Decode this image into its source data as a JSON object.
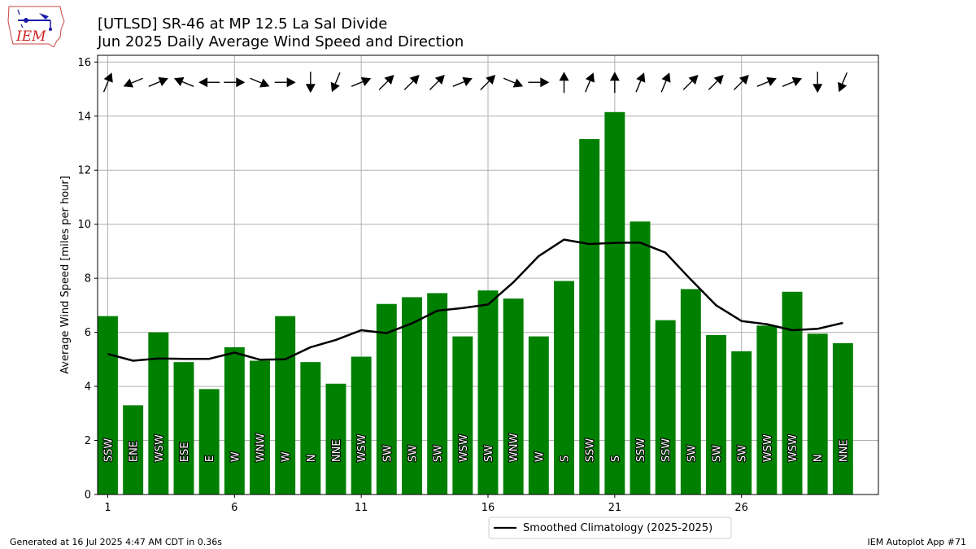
{
  "title_line1": "[UTLSD] SR-46 at MP 12.5 La Sal Divide",
  "title_line2": "Jun 2025 Daily Average Wind Speed and Direction",
  "logo_text": "IEM",
  "footer_left": "Generated at 16 Jul 2025 4:47 AM CDT in 0.36s",
  "footer_right": "IEM Autoplot App #71",
  "colors": {
    "bar": "#008000",
    "line": "#000000",
    "grid": "#b0b0b0",
    "logo_text": "#cc2222",
    "logo_icon": "#1a1aa8"
  },
  "chart_data": {
    "type": "bar",
    "ylabel": "Average Wind Speed [miles per hour]",
    "xlabel": "",
    "ylim": [
      0,
      16.25
    ],
    "xlim": [
      0.6,
      31.4
    ],
    "yticks": [
      0,
      2,
      4,
      6,
      8,
      10,
      12,
      14,
      16
    ],
    "xticks": [
      1,
      6,
      11,
      16,
      21,
      26
    ],
    "grid": true,
    "legend_placement": "bottom-center (below plot)",
    "days": [
      1,
      2,
      3,
      4,
      5,
      6,
      7,
      8,
      9,
      10,
      11,
      12,
      13,
      14,
      15,
      16,
      17,
      18,
      19,
      20,
      21,
      22,
      23,
      24,
      25,
      26,
      27,
      28,
      29,
      30
    ],
    "speeds": [
      6.6,
      3.3,
      6.0,
      4.9,
      3.9,
      5.45,
      4.95,
      6.6,
      4.9,
      4.1,
      5.1,
      7.05,
      7.3,
      7.45,
      5.85,
      7.55,
      7.25,
      5.85,
      7.9,
      13.15,
      14.15,
      10.1,
      6.45,
      7.6,
      5.9,
      5.3,
      6.25,
      7.5,
      5.95,
      5.6
    ],
    "directions": [
      "SSW",
      "ENE",
      "WSW",
      "ESE",
      "E",
      "W",
      "WNW",
      "W",
      "N",
      "NNE",
      "WSW",
      "SW",
      "SW",
      "SW",
      "WSW",
      "SW",
      "WNW",
      "W",
      "S",
      "SSW",
      "S",
      "SSW",
      "SSW",
      "SW",
      "SW",
      "SW",
      "WSW",
      "WSW",
      "N",
      "NNE"
    ],
    "series": [
      {
        "name": "Smoothed Climatology (2025-2025)",
        "values": [
          5.2,
          4.95,
          5.03,
          5.02,
          5.02,
          5.25,
          4.99,
          5.0,
          5.45,
          5.72,
          6.08,
          5.97,
          6.33,
          6.8,
          6.9,
          7.03,
          7.85,
          8.82,
          9.43,
          9.27,
          9.31,
          9.32,
          8.95,
          7.95,
          7.0,
          6.42,
          6.3,
          6.08,
          6.13,
          6.35
        ]
      }
    ]
  }
}
